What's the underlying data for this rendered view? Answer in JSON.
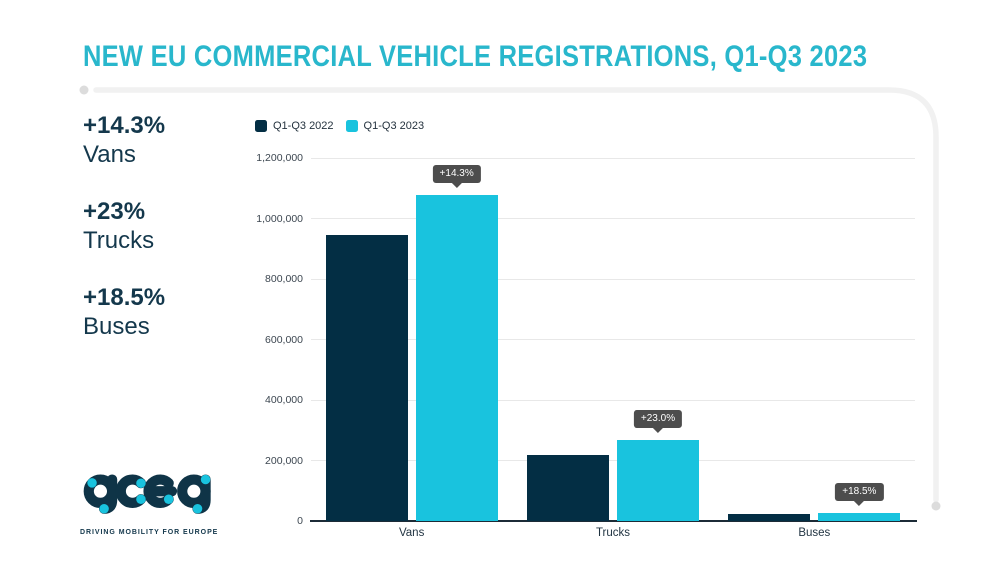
{
  "header": {
    "title": "NEW EU COMMERCIAL VEHICLE REGISTRATIONS, Q1-Q3 2023"
  },
  "stats": {
    "items": [
      {
        "pct": "+14.3%",
        "label": "Vans"
      },
      {
        "pct": "+23%",
        "label": "Trucks"
      },
      {
        "pct": "+18.5%",
        "label": "Buses"
      }
    ]
  },
  "chart_data": {
    "type": "bar",
    "title": "NEW EU COMMERCIAL VEHICLE REGISTRATIONS, Q1-Q3 2023",
    "categories": [
      "Vans",
      "Trucks",
      "Buses"
    ],
    "series": [
      {
        "name": "Q1-Q3 2022",
        "color": "#032e44",
        "values": [
          944000,
          218000,
          22300
        ]
      },
      {
        "name": "Q1-Q3 2023",
        "color": "#19c3de",
        "values": [
          1079000,
          268000,
          26400
        ]
      }
    ],
    "annotations": [
      "+14.3%",
      "+23.0%",
      "+18.5%"
    ],
    "xlabel": "",
    "ylabel": "",
    "ylim": [
      0,
      1200000
    ],
    "yticks": [
      0,
      200000,
      400000,
      600000,
      800000,
      1000000,
      1200000
    ],
    "grid": true,
    "legend_position": "top-left"
  },
  "logo": {
    "wordmark": "acea",
    "tagline": "DRIVING MOBILITY FOR EUROPE"
  },
  "colors": {
    "navy": "#0f3447",
    "bar_navy": "#032e44",
    "cyan": "#19c3de",
    "title_cyan": "#29b7cc",
    "tooltip_bg": "#4d4d4d",
    "grid": "#e8e8e8",
    "axis": "#1c2b37"
  }
}
